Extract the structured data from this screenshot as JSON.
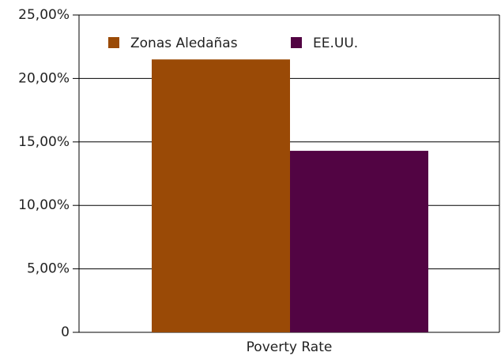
{
  "chart_data": {
    "type": "bar",
    "categories": [
      "Poverty Rate"
    ],
    "series": [
      {
        "name": "Zonas Aledañas",
        "color": "#9a4a06",
        "values": [
          21.5
        ]
      },
      {
        "name": "EE.UU.",
        "color": "#520443",
        "values": [
          14.3
        ]
      }
    ],
    "ylim": [
      0,
      25
    ],
    "yticks": [
      0,
      {
        "value": 5,
        "label": "5,00%"
      },
      {
        "value": 10,
        "label": "10,00%"
      },
      {
        "value": 15,
        "label": "15,00%"
      },
      {
        "value": 20,
        "label": "20,00%"
      },
      {
        "value": 25,
        "label": "25,00%"
      }
    ],
    "grid": true,
    "legend": "top-left"
  }
}
